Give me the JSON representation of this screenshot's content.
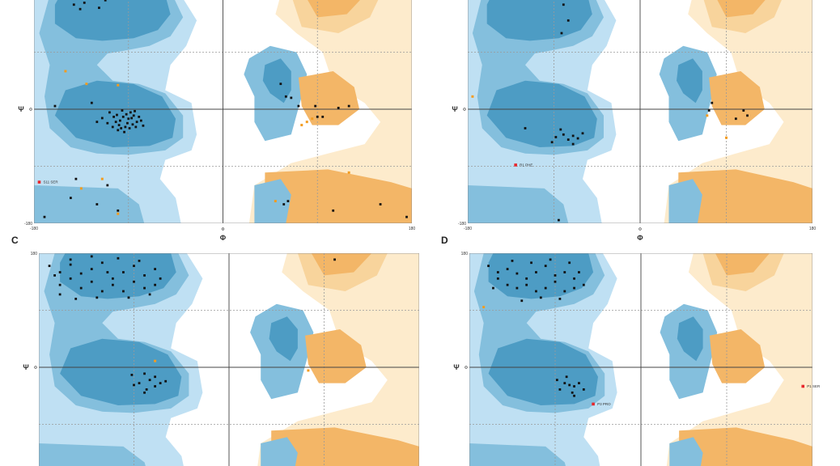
{
  "colors": {
    "core_blue": "#4d9cc4",
    "allowed_blue": "#84bfdd",
    "generous_blue": "#bfe0f3",
    "core_orange": "#f3b667",
    "allowed_orange": "#f8d49c",
    "generous_orange": "#fdebcc",
    "residue_dot": "#111111",
    "glycine_dot": "#f39c1f",
    "outlier_dot": "#e8262b",
    "grid": "#9a9a9a"
  },
  "chart_data": [
    {
      "panel": "",
      "type": "scatter",
      "xlabel": "Φ",
      "ylabel": "Ψ",
      "xlim": [
        -180,
        180
      ],
      "ylim": [
        -180,
        180
      ],
      "x_ticks": [
        "-180",
        "0",
        "180"
      ],
      "y_ticks": [
        "",
        "0",
        "-180"
      ],
      "grid": true,
      "points": [
        [
          -95,
          -12
        ],
        [
          -92,
          -8
        ],
        [
          -88,
          -5
        ],
        [
          -85,
          -10
        ],
        [
          -90,
          -15
        ],
        [
          -98,
          -18
        ],
        [
          -102,
          -20
        ],
        [
          -82,
          -20
        ],
        [
          -86,
          -24
        ],
        [
          -93,
          -28
        ],
        [
          -99,
          -25
        ],
        [
          -105,
          -28
        ],
        [
          -80,
          -12
        ],
        [
          -78,
          -18
        ],
        [
          -110,
          -22
        ],
        [
          -96,
          -2
        ],
        [
          -89,
          -30
        ],
        [
          -104,
          -12
        ],
        [
          -84,
          -3
        ],
        [
          -91,
          -22
        ],
        [
          -115,
          -14
        ],
        [
          -76,
          -26
        ],
        [
          -100,
          -33
        ],
        [
          -94,
          -36
        ],
        [
          -87,
          -14
        ],
        [
          -108,
          -5
        ],
        [
          -101,
          -9
        ],
        [
          -83,
          -28
        ],
        [
          -97,
          -30
        ],
        [
          -120,
          -20
        ],
        [
          -125,
          10
        ],
        [
          -160,
          5
        ],
        [
          -145,
          -140
        ],
        [
          -120,
          -150
        ],
        [
          -100,
          -160
        ],
        [
          -170,
          -170
        ],
        [
          -110,
          -120
        ],
        [
          -140,
          -110
        ],
        [
          -118,
          160
        ],
        [
          -132,
          168
        ],
        [
          -126,
          175
        ],
        [
          -142,
          165
        ],
        [
          -112,
          172
        ],
        [
          -150,
          178
        ],
        [
          -136,
          158
        ],
        [
          55,
          40
        ],
        [
          60,
          20
        ],
        [
          65,
          18
        ],
        [
          72,
          5
        ],
        [
          88,
          5
        ],
        [
          90,
          -12
        ],
        [
          95,
          -12
        ],
        [
          110,
          2
        ],
        [
          120,
          5
        ],
        [
          58,
          -150
        ],
        [
          62,
          -145
        ],
        [
          105,
          -160
        ],
        [
          150,
          -150
        ],
        [
          175,
          -170
        ]
      ],
      "glycine_points": [
        [
          -130,
          40
        ],
        [
          -100,
          38
        ],
        [
          -150,
          60
        ],
        [
          -115,
          -110
        ],
        [
          -135,
          -125
        ],
        [
          -100,
          -165
        ],
        [
          80,
          -20
        ],
        [
          85,
          -15
        ],
        [
          75,
          -25
        ],
        [
          50,
          -145
        ],
        [
          120,
          -100
        ]
      ],
      "outliers": [
        {
          "x": -175,
          "y": -115,
          "label": "S11 SER"
        }
      ]
    },
    {
      "panel": "",
      "type": "scatter",
      "xlabel": "Φ",
      "ylabel": "Ψ",
      "xlim": [
        -180,
        180
      ],
      "ylim": [
        -180,
        180
      ],
      "x_ticks": [
        "-180",
        "0",
        "180"
      ],
      "y_ticks": [
        "",
        "0",
        "-180"
      ],
      "grid": true,
      "points": [
        [
          -80,
          -40
        ],
        [
          -88,
          -44
        ],
        [
          -75,
          -48
        ],
        [
          -70,
          -42
        ],
        [
          -65,
          -46
        ],
        [
          -92,
          -52
        ],
        [
          -60,
          -38
        ],
        [
          -83,
          -32
        ],
        [
          -120,
          -30
        ],
        [
          -70,
          -55
        ],
        [
          -80,
          165
        ],
        [
          -75,
          140
        ],
        [
          -82,
          120
        ],
        [
          -70,
          175
        ],
        [
          75,
          10
        ],
        [
          72,
          -2
        ],
        [
          100,
          -15
        ],
        [
          112,
          -10
        ],
        [
          108,
          -2
        ],
        [
          -85,
          -175
        ]
      ],
      "glycine_points": [
        [
          -175,
          20
        ],
        [
          70,
          -10
        ],
        [
          90,
          -45
        ]
      ],
      "outliers": [
        {
          "x": -130,
          "y": -88,
          "label": "R1 PHE"
        }
      ]
    },
    {
      "panel": "C",
      "type": "scatter",
      "xlabel": "",
      "ylabel": "Ψ",
      "xlim": [
        -180,
        180
      ],
      "ylim": [
        -180,
        180
      ],
      "x_ticks": [
        "",
        "",
        ""
      ],
      "y_ticks": [
        "180",
        "0",
        ""
      ],
      "grid": true,
      "points": [
        [
          -170,
          160
        ],
        [
          -160,
          150
        ],
        [
          -150,
          162
        ],
        [
          -140,
          148
        ],
        [
          -130,
          155
        ],
        [
          -120,
          165
        ],
        [
          -110,
          140
        ],
        [
          -100,
          150
        ],
        [
          -90,
          160
        ],
        [
          -80,
          145
        ],
        [
          -70,
          155
        ],
        [
          -160,
          130
        ],
        [
          -150,
          140
        ],
        [
          -140,
          125
        ],
        [
          -130,
          135
        ],
        [
          -120,
          120
        ],
        [
          -110,
          130
        ],
        [
          -100,
          120
        ],
        [
          -90,
          135
        ],
        [
          -80,
          125
        ],
        [
          -70,
          130
        ],
        [
          -150,
          170
        ],
        [
          -130,
          175
        ],
        [
          -105,
          172
        ],
        [
          -85,
          168
        ],
        [
          -65,
          140
        ],
        [
          -145,
          108
        ],
        [
          -125,
          110
        ],
        [
          -95,
          110
        ],
        [
          -75,
          115
        ],
        [
          -160,
          115
        ],
        [
          -115,
          150
        ],
        [
          -165,
          145
        ],
        [
          -80,
          -10
        ],
        [
          -75,
          -20
        ],
        [
          -85,
          -25
        ],
        [
          -70,
          -30
        ],
        [
          -78,
          -35
        ],
        [
          -90,
          -28
        ],
        [
          -65,
          -25
        ],
        [
          -92,
          -12
        ],
        [
          -60,
          -22
        ],
        [
          -70,
          -15
        ],
        [
          -80,
          -40
        ],
        [
          100,
          170
        ]
      ],
      "glycine_points": [
        [
          -70,
          10
        ],
        [
          75,
          -5
        ]
      ],
      "outliers": []
    },
    {
      "panel": "D",
      "type": "scatter",
      "xlabel": "",
      "ylabel": "Ψ",
      "xlim": [
        -180,
        180
      ],
      "ylim": [
        -180,
        180
      ],
      "x_ticks": [
        "",
        "",
        ""
      ],
      "y_ticks": [
        "180",
        "0",
        ""
      ],
      "grid": true,
      "points": [
        [
          -160,
          160
        ],
        [
          -150,
          150
        ],
        [
          -140,
          155
        ],
        [
          -130,
          148
        ],
        [
          -120,
          140
        ],
        [
          -110,
          150
        ],
        [
          -100,
          160
        ],
        [
          -90,
          145
        ],
        [
          -80,
          150
        ],
        [
          -70,
          140
        ],
        [
          -150,
          140
        ],
        [
          -140,
          130
        ],
        [
          -130,
          125
        ],
        [
          -120,
          130
        ],
        [
          -110,
          120
        ],
        [
          -100,
          125
        ],
        [
          -90,
          135
        ],
        [
          -80,
          120
        ],
        [
          -70,
          125
        ],
        [
          -60,
          130
        ],
        [
          -135,
          168
        ],
        [
          -115,
          165
        ],
        [
          -95,
          170
        ],
        [
          -75,
          165
        ],
        [
          -125,
          105
        ],
        [
          -105,
          110
        ],
        [
          -85,
          108
        ],
        [
          -155,
          125
        ],
        [
          -65,
          150
        ],
        [
          -80,
          -25
        ],
        [
          -75,
          -28
        ],
        [
          -70,
          -30
        ],
        [
          -85,
          -35
        ],
        [
          -65,
          -25
        ],
        [
          -72,
          -40
        ],
        [
          -88,
          -20
        ],
        [
          -60,
          -35
        ],
        [
          -78,
          -15
        ],
        [
          -70,
          -45
        ]
      ],
      "glycine_points": [
        [
          -165,
          95
        ]
      ],
      "outliers": [
        {
          "x": -50,
          "y": -58,
          "label": "P3 PRO"
        },
        {
          "x": 170,
          "y": -30,
          "label": "P1 SER"
        }
      ]
    }
  ]
}
